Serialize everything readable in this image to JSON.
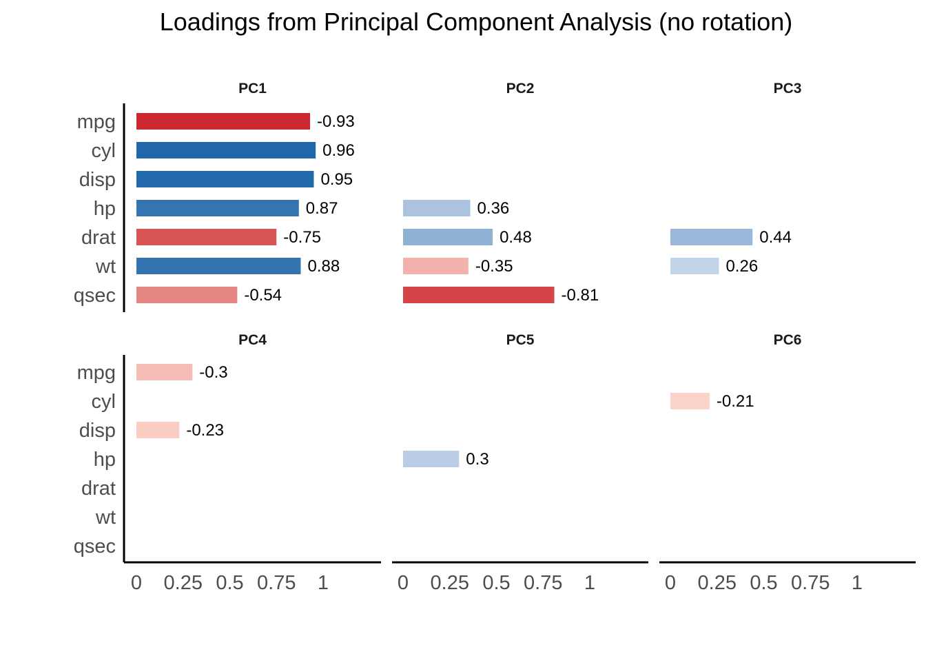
{
  "chart_data": {
    "type": "bar",
    "orientation": "horizontal",
    "title": "Loadings from Principal Component Analysis (no rotation)",
    "xlabel": "",
    "ylabel": "",
    "variables": [
      "mpg",
      "cyl",
      "disp",
      "hp",
      "drat",
      "wt",
      "qsec"
    ],
    "x_ticks": [
      "0",
      "0.25",
      "0.5",
      "0.75",
      "1"
    ],
    "xlim": [
      0,
      1.35
    ],
    "panel_layout": "2 rows x 3 columns",
    "grid": false,
    "legend": "none",
    "colors": {
      "negative_scale": [
        "#fcd5cc",
        "#c92226"
      ],
      "positive_scale": [
        "#d1dced",
        "#1f67a9"
      ]
    },
    "panels": [
      {
        "name": "PC1",
        "loadings": [
          {
            "var": "mpg",
            "value": -0.93,
            "label": "-0.93"
          },
          {
            "var": "cyl",
            "value": 0.96,
            "label": "0.96"
          },
          {
            "var": "disp",
            "value": 0.95,
            "label": "0.95"
          },
          {
            "var": "hp",
            "value": 0.87,
            "label": "0.87"
          },
          {
            "var": "drat",
            "value": -0.75,
            "label": "-0.75"
          },
          {
            "var": "wt",
            "value": 0.88,
            "label": "0.88"
          },
          {
            "var": "qsec",
            "value": -0.54,
            "label": "-0.54"
          }
        ]
      },
      {
        "name": "PC2",
        "loadings": [
          {
            "var": "hp",
            "value": 0.36,
            "label": "0.36"
          },
          {
            "var": "drat",
            "value": 0.48,
            "label": "0.48"
          },
          {
            "var": "wt",
            "value": -0.35,
            "label": "-0.35"
          },
          {
            "var": "qsec",
            "value": -0.81,
            "label": "-0.81"
          }
        ]
      },
      {
        "name": "PC3",
        "loadings": [
          {
            "var": "drat",
            "value": 0.44,
            "label": "0.44"
          },
          {
            "var": "wt",
            "value": 0.26,
            "label": "0.26"
          }
        ]
      },
      {
        "name": "PC4",
        "loadings": [
          {
            "var": "mpg",
            "value": -0.3,
            "label": "-0.3"
          },
          {
            "var": "disp",
            "value": -0.23,
            "label": "-0.23"
          }
        ]
      },
      {
        "name": "PC5",
        "loadings": [
          {
            "var": "hp",
            "value": 0.3,
            "label": "0.3"
          }
        ]
      },
      {
        "name": "PC6",
        "loadings": [
          {
            "var": "cyl",
            "value": -0.21,
            "label": "-0.21"
          }
        ]
      }
    ]
  }
}
